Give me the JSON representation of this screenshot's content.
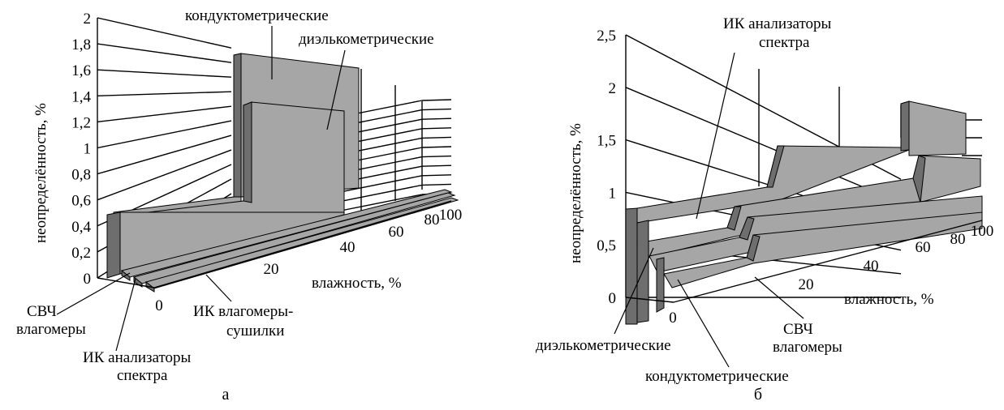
{
  "chart_data": [
    {
      "panel": "а",
      "type": "area",
      "variant": "3d-step",
      "ylabel": "неопределённость, %",
      "xlabel": "влажность, %",
      "y_ticks": [
        "0",
        "0,2",
        "0,4",
        "0,6",
        "0,8",
        "1",
        "1,2",
        "1,4",
        "1,6",
        "1,8",
        "2"
      ],
      "x_ticks": [
        "0",
        "20",
        "40",
        "60",
        "80",
        "100"
      ],
      "ylim": [
        0,
        2
      ],
      "xlim": [
        0,
        100
      ],
      "series": [
        {
          "name": "ИК анализаторы спектра",
          "x": [
            0,
            100
          ],
          "y": [
            0.05,
            0.05
          ]
        },
        {
          "name": "СВЧ влагомеры",
          "x": [
            0,
            100
          ],
          "y": [
            0.05,
            0.05
          ]
        },
        {
          "name": "ИК влагомеры-сушилки",
          "x": [
            0,
            100
          ],
          "y": [
            0.05,
            0.05
          ]
        },
        {
          "name": "диэлькометрические",
          "x": [
            0,
            20,
            20,
            100
          ],
          "y": [
            0.5,
            0.5,
            1.45,
            1.45
          ]
        },
        {
          "name": "кондуктометрические",
          "x": [
            0,
            20,
            20,
            100
          ],
          "y": [
            0.55,
            0.55,
            1.75,
            1.75
          ]
        }
      ]
    },
    {
      "panel": "б",
      "type": "area",
      "variant": "3d-step",
      "ylabel": "неопределённость, %",
      "xlabel": "влажность, %",
      "y_ticks": [
        "0",
        "0,5",
        "1",
        "1,5",
        "2",
        "2,5"
      ],
      "x_ticks": [
        "0",
        "20",
        "40",
        "60",
        "80",
        "100"
      ],
      "ylim": [
        0,
        2.5
      ],
      "xlim": [
        0,
        100
      ],
      "series": [
        {
          "name": "кондуктометрические",
          "x": [
            0,
            40,
            40,
            100
          ],
          "y": [
            0.2,
            0.2,
            0.7,
            0.7
          ]
        },
        {
          "name": "СВЧ влагомеры",
          "x": [
            0,
            40,
            40,
            100
          ],
          "y": [
            0.3,
            0.3,
            0.8,
            0.8
          ]
        },
        {
          "name": "диэлькометрические",
          "x": [
            0,
            40,
            40,
            80,
            80,
            100
          ],
          "y": [
            0.5,
            0.5,
            1.0,
            1.0,
            1.2,
            1.2
          ]
        },
        {
          "name": "ИК анализаторы спектра",
          "x": [
            0,
            40,
            40,
            80,
            80,
            100
          ],
          "y": [
            0.85,
            0.85,
            1.6,
            1.6,
            2.0,
            2.0
          ]
        }
      ]
    }
  ],
  "captions": {
    "a": "а",
    "b": "б"
  },
  "colors": {
    "face": "#a6a6a6",
    "side": "#6e6e6e",
    "top": "#8a8a8a",
    "line": "#000000"
  }
}
